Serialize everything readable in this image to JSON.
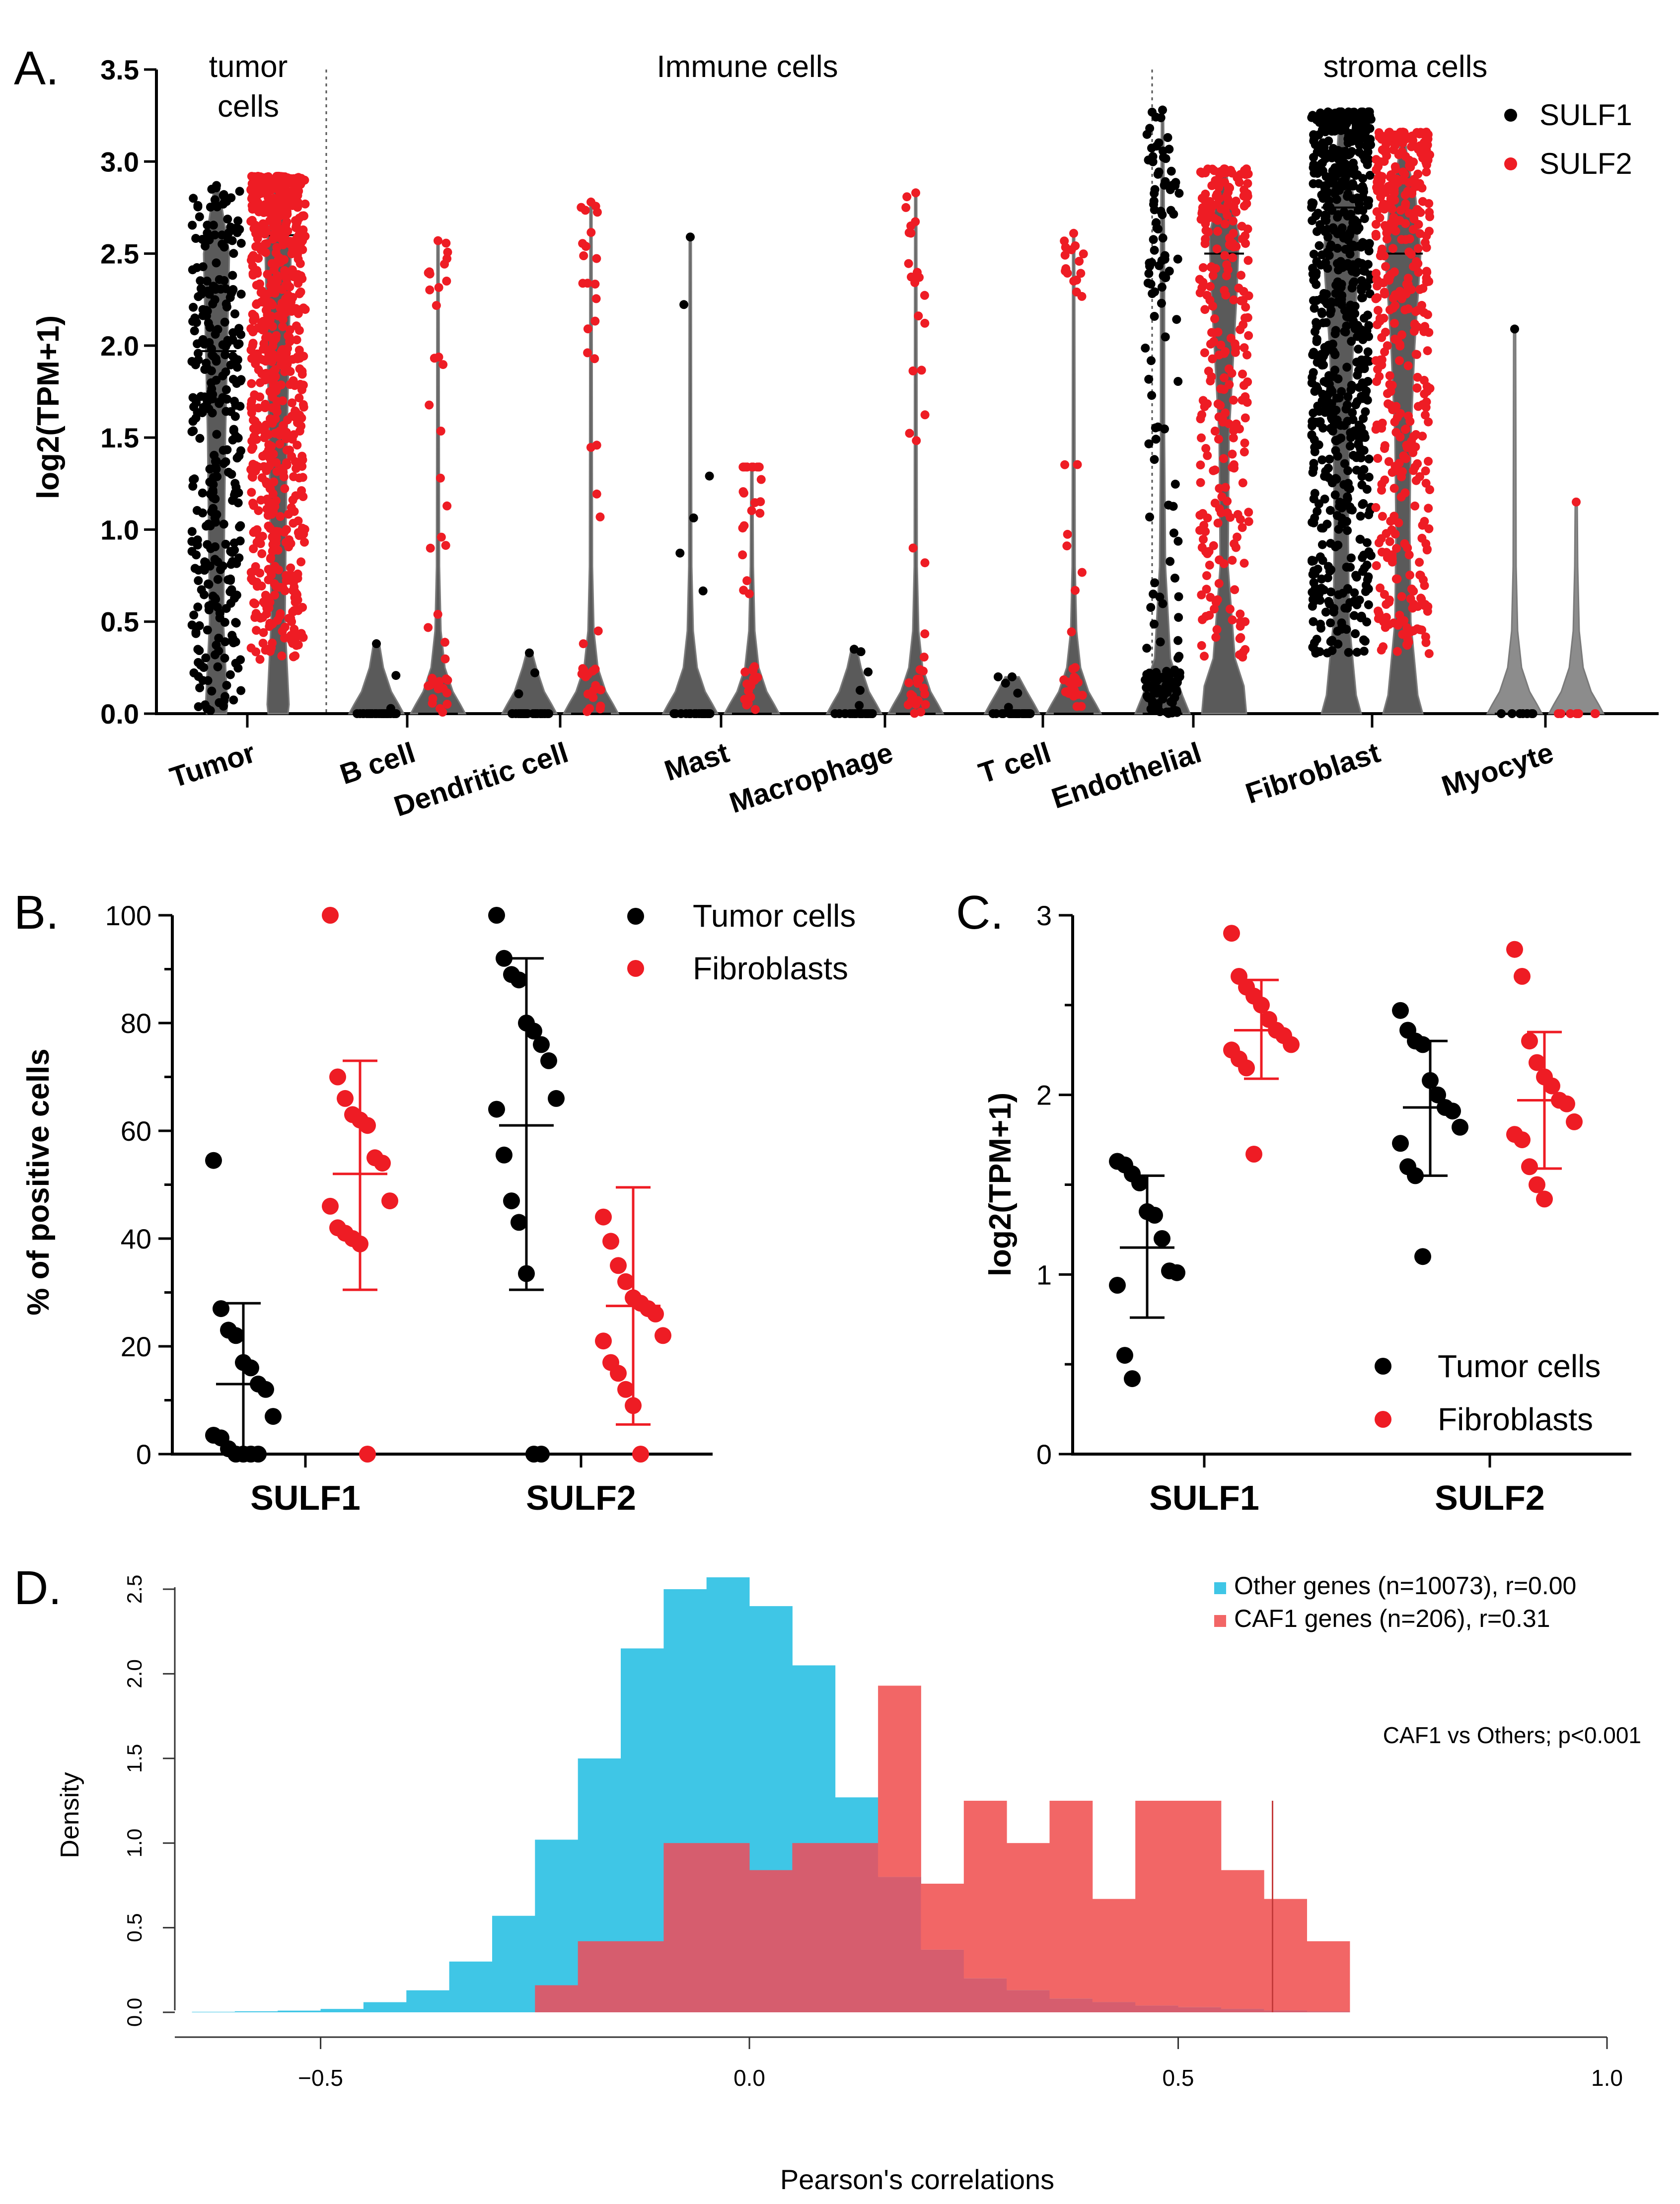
{
  "colors": {
    "sulf1": "#000000",
    "sulf2": "#ee1c24",
    "violin": "#5a5a5a",
    "violin_light": "#8c8c8c",
    "other_hist": "#3fc6e6",
    "caf_hist": "#f26666",
    "overlap": "#d65d6e"
  },
  "chart_data": [
    {
      "panel": "A.",
      "type": "scatter",
      "ylabel": "log2(TPM+1)",
      "ylim": [
        0,
        3.5
      ],
      "yticks": [
        "0.0",
        "0.5",
        "1.0",
        "1.5",
        "2.0",
        "2.5",
        "3.0",
        "3.5"
      ],
      "groups": [
        {
          "line1": "tumor",
          "line2": "cells"
        },
        {
          "line1": "Immune cells",
          "line2": ""
        },
        {
          "line1": "stroma cells",
          "line2": ""
        }
      ],
      "legend": [
        "SULF1",
        "SULF2"
      ],
      "categories": [
        "Tumor",
        "B cell",
        "Dendritic cell",
        "Mast",
        "Macrophage",
        "T cell",
        "Endothelial",
        "Fibroblast",
        "Myocyte"
      ],
      "series": [
        {
          "name": "SULF1",
          "max": [
            2.87,
            0.38,
            0.33,
            2.59,
            0.35,
            0.2,
            3.28,
            3.27,
            2.09
          ],
          "median": [
            1.97,
            0.0,
            0.0,
            0.0,
            0.0,
            0.0,
            0.0,
            2.75,
            0.0
          ]
        },
        {
          "name": "SULF2",
          "max": [
            2.92,
            2.57,
            2.78,
            1.34,
            2.83,
            2.61,
            2.96,
            3.16,
            1.15
          ],
          "median": [
            2.6,
            0.0,
            0.0,
            0.0,
            0.0,
            0.0,
            2.5,
            2.5,
            0.0
          ]
        }
      ]
    },
    {
      "panel": "B.",
      "type": "scatter",
      "ylabel": "% of positive cells",
      "ylim": [
        0,
        100
      ],
      "yticks": [
        "0",
        "20",
        "40",
        "60",
        "80",
        "100"
      ],
      "categories": [
        "SULF1",
        "SULF2"
      ],
      "legend": [
        "Tumor cells",
        "Fibroblasts"
      ],
      "series": [
        {
          "name": "Tumor cells",
          "points": [
            [
              54.5,
              27,
              23,
              22,
              17,
              16,
              13,
              12,
              7,
              3.5,
              3,
              1,
              0,
              0,
              0,
              0
            ],
            [
              100,
              92,
              89,
              88,
              80,
              78.5,
              76,
              73,
              66,
              64,
              55.5,
              47,
              43,
              33.5,
              0,
              0
            ]
          ],
          "mean": [
            13,
            61
          ],
          "sd_low": [
            0,
            30.5
          ],
          "sd_high": [
            28,
            92
          ]
        },
        {
          "name": "Fibroblasts",
          "points": [
            [
              100,
              70,
              66,
              63,
              62,
              61,
              55,
              54,
              47,
              46,
              42,
              41,
              40,
              39,
              0
            ],
            [
              44,
              39.5,
              35,
              32,
              29,
              28,
              27,
              26,
              22,
              21,
              17,
              15,
              12,
              9,
              0
            ]
          ],
          "mean": [
            52,
            27.5
          ],
          "sd_low": [
            30.5,
            5.5
          ],
          "sd_high": [
            73,
            49.5
          ]
        }
      ]
    },
    {
      "panel": "C.",
      "type": "scatter",
      "ylabel": "log2(TPM+1)",
      "ylim": [
        0,
        3
      ],
      "yticks": [
        "0",
        "1",
        "2",
        "3"
      ],
      "categories": [
        "SULF1",
        "SULF2"
      ],
      "legend": [
        "Tumor cells",
        "Fibroblasts"
      ],
      "series": [
        {
          "name": "Tumor cells",
          "points": [
            [
              1.63,
              1.61,
              1.56,
              1.51,
              1.35,
              1.33,
              1.2,
              1.02,
              1.01,
              0.94,
              0.55,
              0.42
            ],
            [
              2.47,
              2.36,
              2.3,
              2.28,
              2.08,
              2.0,
              1.93,
              1.91,
              1.82,
              1.73,
              1.6,
              1.55,
              1.1
            ]
          ],
          "mean": [
            1.15,
            1.93
          ],
          "sd_low": [
            0.76,
            1.55
          ],
          "sd_high": [
            1.55,
            2.3
          ]
        },
        {
          "name": "Fibroblasts",
          "points": [
            [
              2.9,
              2.66,
              2.6,
              2.55,
              2.5,
              2.42,
              2.36,
              2.33,
              2.28,
              2.25,
              2.2,
              2.15,
              1.67
            ],
            [
              2.81,
              2.66,
              2.3,
              2.18,
              2.1,
              2.05,
              1.97,
              1.95,
              1.85,
              1.78,
              1.75,
              1.6,
              1.5,
              1.42
            ]
          ],
          "mean": [
            2.36,
            1.97
          ],
          "sd_low": [
            2.09,
            1.59
          ],
          "sd_high": [
            2.64,
            2.35
          ]
        }
      ]
    },
    {
      "panel": "D.",
      "type": "bar",
      "xlabel": "Pearson's correlations",
      "ylabel": "Density",
      "xlim": [
        -0.67,
        1.0
      ],
      "ylim": [
        0,
        2.5
      ],
      "xticks": [
        "−0.5",
        "0.0",
        "0.5",
        "1.0"
      ],
      "yticks": [
        "0.0",
        "0.5",
        "1.0",
        "1.5",
        "2.0",
        "2.5"
      ],
      "legend": [
        "Other genes (n=10073), r=0.00",
        "CAF1 genes (n=206), r=0.31"
      ],
      "annotation": "CAF1 vs Others; p<0.001",
      "bin_width": 0.05,
      "series": [
        {
          "name": "Other genes (n=10073), r=0.00",
          "bin_start": -0.65,
          "values": [
            0.003,
            0.006,
            0.01,
            0.02,
            0.06,
            0.13,
            0.3,
            0.57,
            1.02,
            1.5,
            2.15,
            2.5,
            2.57,
            2.4,
            2.05,
            1.27,
            0.8,
            0.37,
            0.2,
            0.13,
            0.08,
            0.06,
            0.04,
            0.03,
            0.02,
            0.01,
            0.005
          ]
        },
        {
          "name": "CAF1 genes (n=206), r=0.31",
          "bin_start": -0.25,
          "values": [
            0.16,
            0.42,
            0.42,
            1.0,
            1.0,
            0.84,
            1.0,
            1.0,
            1.93,
            0.76,
            1.25,
            1.0,
            1.25,
            0.67,
            1.25,
            1.25,
            0.84,
            0.67,
            0.42,
            0
          ]
        }
      ],
      "vline": 0.61
    }
  ]
}
